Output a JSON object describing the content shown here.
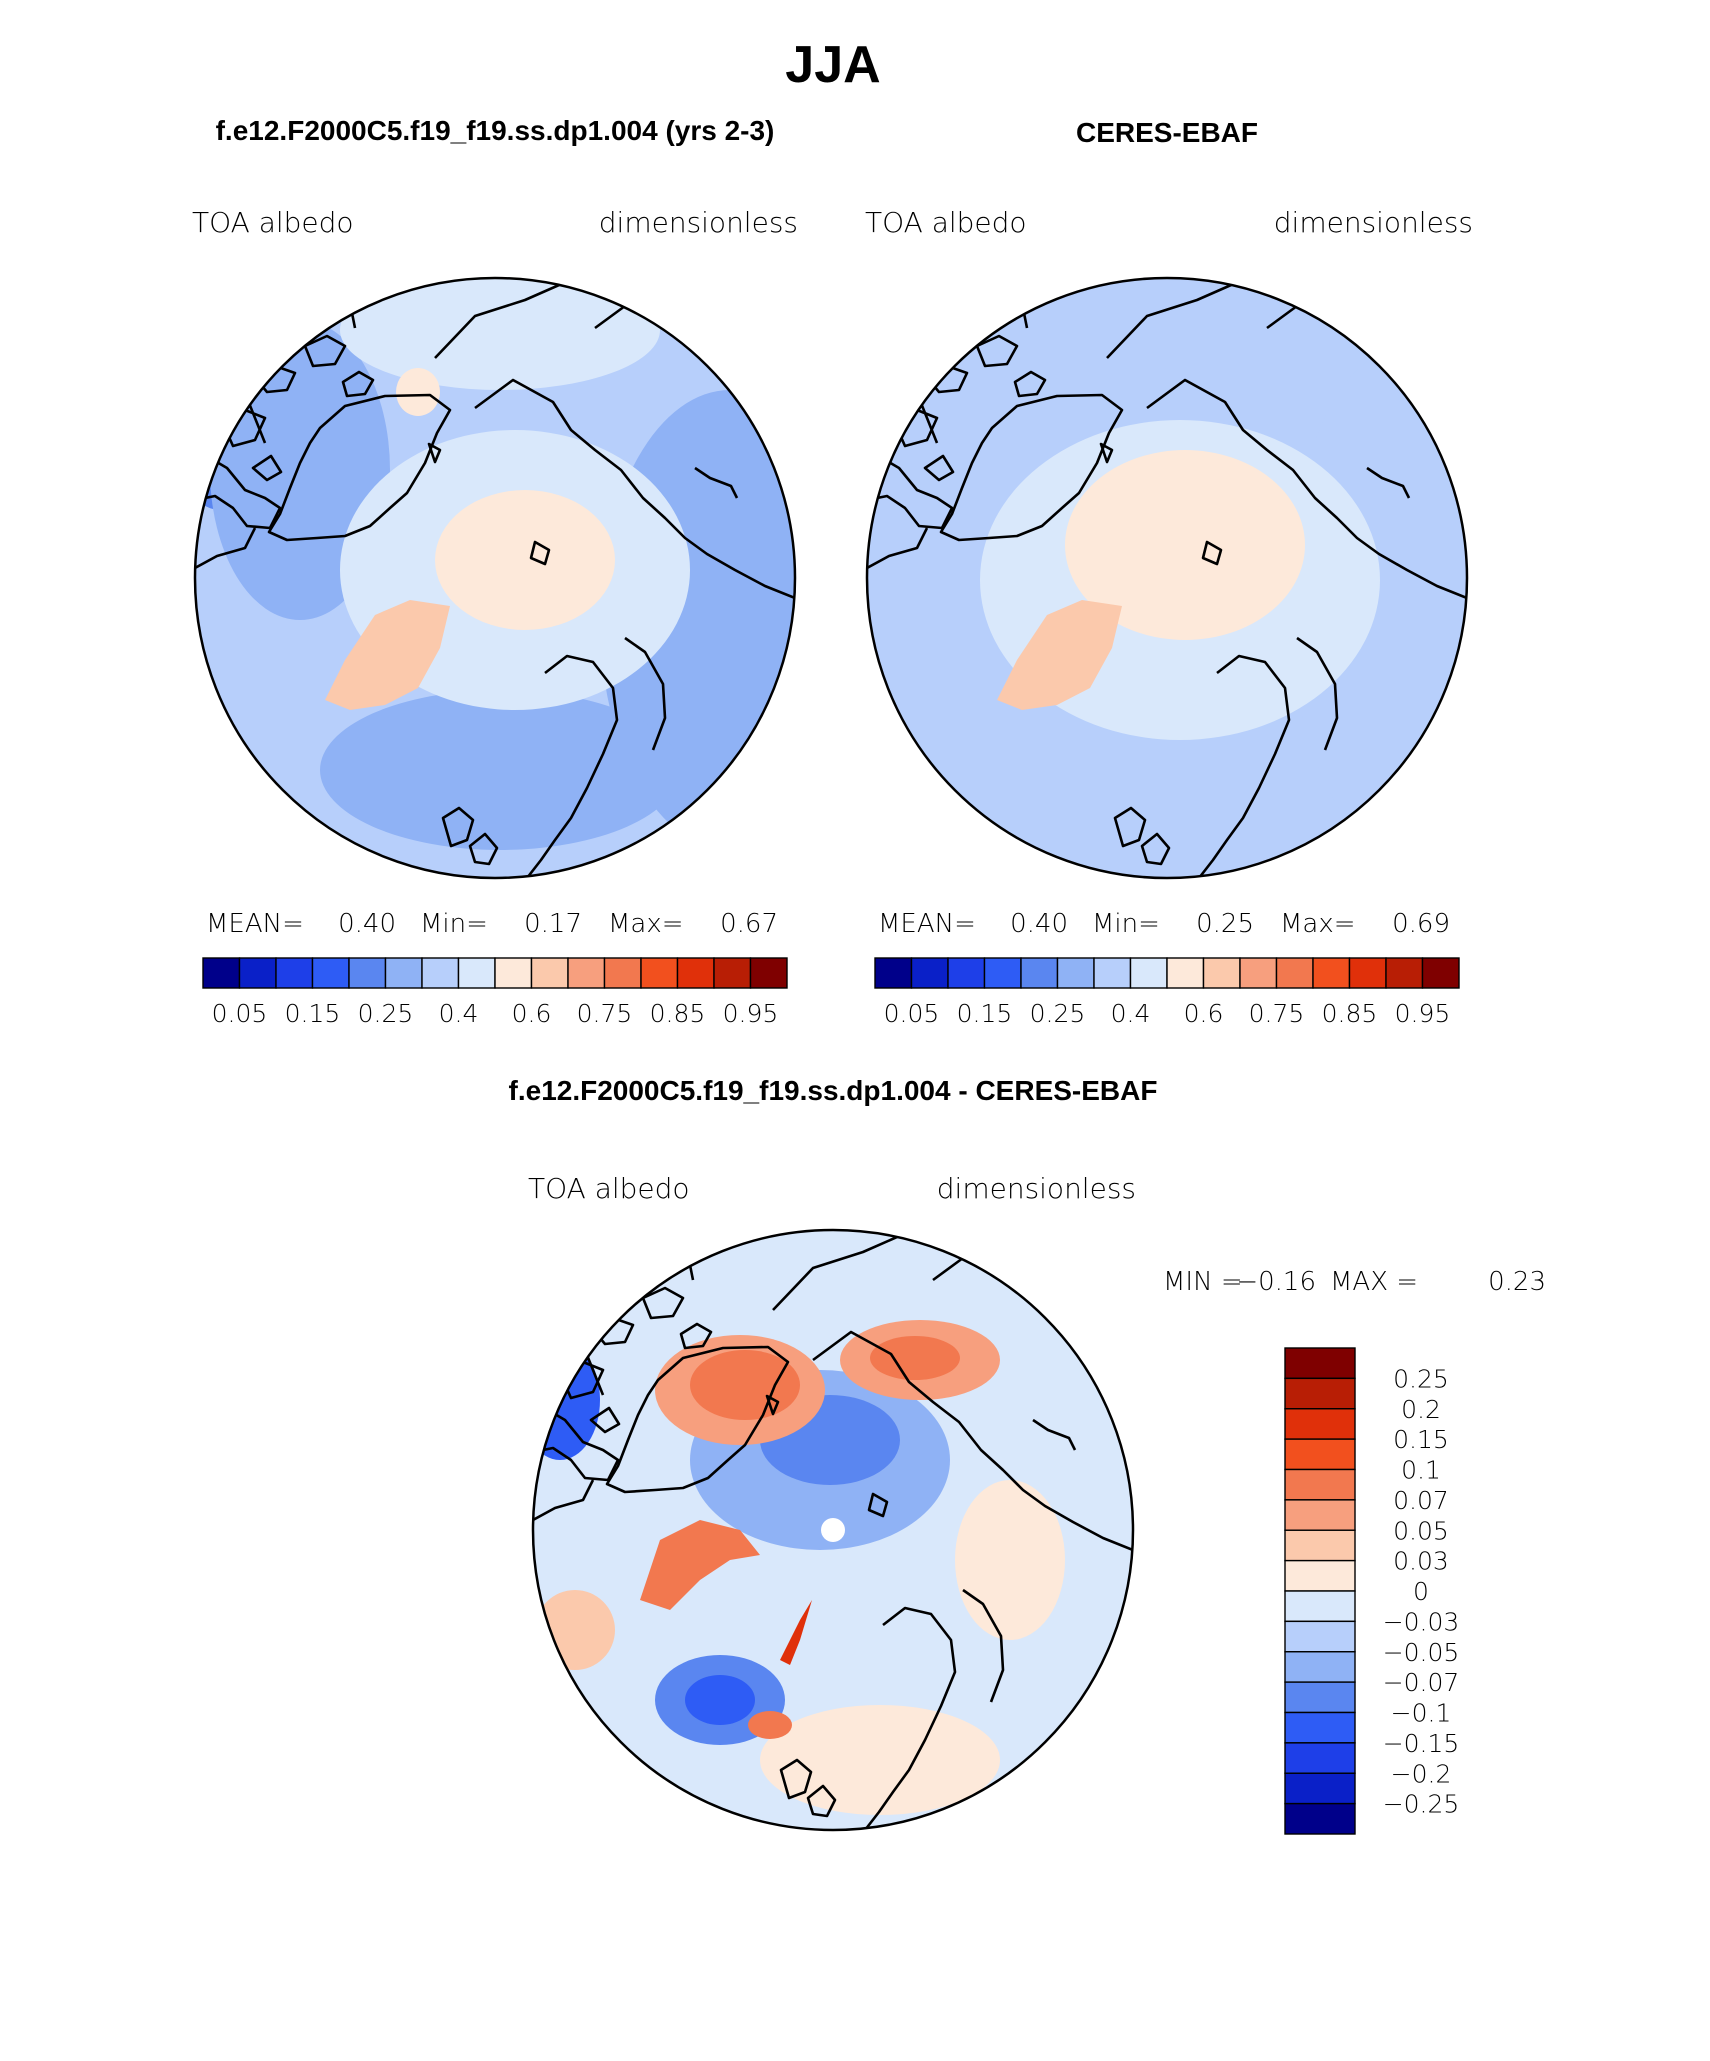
{
  "season": "JJA",
  "palette": {
    "abs": [
      "#00008a",
      "#0a20c8",
      "#1e3fe8",
      "#2e5cf5",
      "#5a86f0",
      "#8fb2f5",
      "#b7cffb",
      "#d9e8fb",
      "#fde9da",
      "#fbc9ac",
      "#f79f7e",
      "#f2784f",
      "#f2501e",
      "#e0300a",
      "#b81e05",
      "#7f0000"
    ],
    "diff": [
      "#7f0000",
      "#b81e05",
      "#e0300a",
      "#f2501e",
      "#f2784f",
      "#f79f7e",
      "#fbc9ac",
      "#fde9da",
      "#d9e8fb",
      "#b7cffb",
      "#8fb2f5",
      "#5a86f0",
      "#2e5cf5",
      "#1e3fe8",
      "#0a20c8",
      "#00008a"
    ]
  },
  "chart_data": [
    {
      "type": "heatmap",
      "projection": "north-polar-stereographic",
      "title": "f.e12.F2000C5.f19_f19.ss.dp1.004 (yrs 2-3)",
      "left_label": "TOA albedo",
      "right_label": "dimensionless",
      "stats": {
        "mean_label": "MEAN=",
        "mean": "0.40",
        "min_label": "Min=",
        "min": "0.17",
        "max_label": "Max=",
        "max": "0.67"
      },
      "colorbar_levels": [
        0.05,
        0.1,
        0.15,
        0.2,
        0.25,
        0.3,
        0.35,
        0.4,
        0.5,
        0.6,
        0.7,
        0.75,
        0.8,
        0.85,
        0.9,
        0.95
      ],
      "colorbar_tick_labels": [
        "0.05",
        "0.15",
        "0.25",
        "0.4",
        "0.6",
        "0.75",
        "0.85",
        "0.95"
      ]
    },
    {
      "type": "heatmap",
      "projection": "north-polar-stereographic",
      "title": "CERES-EBAF",
      "left_label": "TOA albedo",
      "right_label": "dimensionless",
      "stats": {
        "mean_label": "MEAN=",
        "mean": "0.40",
        "min_label": "Min=",
        "min": "0.25",
        "max_label": "Max=",
        "max": "0.69"
      },
      "colorbar_levels": [
        0.05,
        0.1,
        0.15,
        0.2,
        0.25,
        0.3,
        0.35,
        0.4,
        0.5,
        0.6,
        0.7,
        0.75,
        0.8,
        0.85,
        0.9,
        0.95
      ],
      "colorbar_tick_labels": [
        "0.05",
        "0.15",
        "0.25",
        "0.4",
        "0.6",
        "0.75",
        "0.85",
        "0.95"
      ]
    },
    {
      "type": "heatmap",
      "projection": "north-polar-stereographic",
      "title": "f.e12.F2000C5.f19_f19.ss.dp1.004 - CERES-EBAF",
      "left_label": "TOA albedo",
      "right_label": "dimensionless",
      "stats": {
        "min_label": "MIN =",
        "min": "−0.16",
        "max_label": "MAX =",
        "max": "0.23"
      },
      "colorbar_levels": [
        0.25,
        0.2,
        0.15,
        0.1,
        0.07,
        0.05,
        0.03,
        0,
        -0.03,
        -0.05,
        -0.07,
        -0.1,
        -0.15,
        -0.2,
        -0.25
      ],
      "colorbar_tick_labels": [
        "0.25",
        "0.2",
        "0.15",
        "0.1",
        "0.07",
        "0.05",
        "0.03",
        "0",
        "−0.03",
        "−0.05",
        "−0.07",
        "−0.1",
        "−0.15",
        "−0.2",
        "−0.25"
      ]
    }
  ]
}
